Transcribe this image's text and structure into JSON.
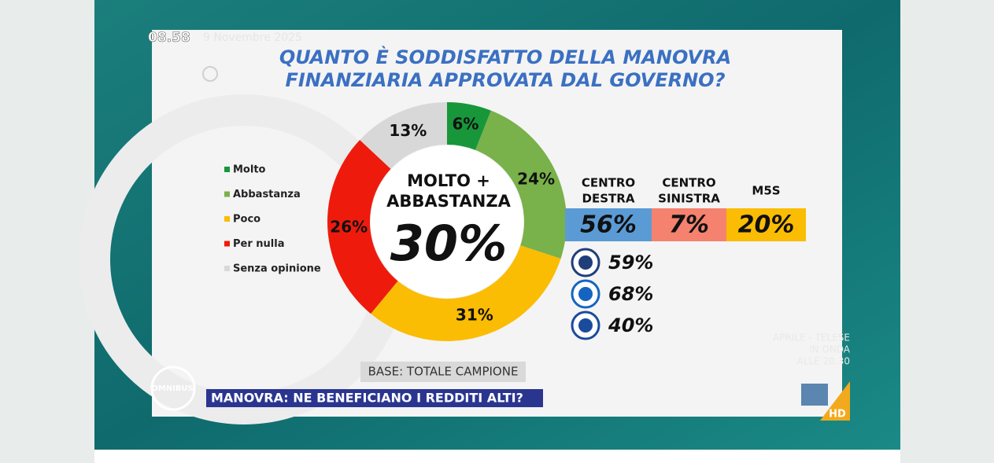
{
  "chart_data": {
    "type": "pie",
    "donut": true,
    "title": [
      "QUANTO È SODDISFATTO DELLA MANOVRA",
      "FINANZIARIA APPROVATA DAL GOVERNO?"
    ],
    "categories": [
      "Molto",
      "Abbastanza",
      "Poco",
      "Per nulla",
      "Senza opinione"
    ],
    "values": [
      6,
      24,
      31,
      26,
      13
    ],
    "value_labels": [
      "6%",
      "24%",
      "31%",
      "26%",
      "13%"
    ],
    "colors": [
      "#17973a",
      "#79b14a",
      "#fbbc04",
      "#ee1b0d",
      "#d8d8d8"
    ],
    "center_label": [
      "MOLTO +",
      "ABBASTANZA"
    ],
    "center_value": 30,
    "center_value_label": "30%",
    "note": "BASE: TOTALE CAMPIONE"
  },
  "breakdown": {
    "groups": [
      {
        "name": [
          "CENTRO",
          "DESTRA"
        ],
        "value": 56,
        "label": "56%",
        "color": "#5b9bd5"
      },
      {
        "name": [
          "CENTRO",
          "SINISTRA"
        ],
        "value": 7,
        "label": "7%",
        "color": "#f4826f"
      },
      {
        "name": [
          "M5S"
        ],
        "value": 20,
        "label": "20%",
        "color": "#fbbc04"
      }
    ],
    "parties": [
      {
        "value": 59,
        "label": "59%"
      },
      {
        "value": 68,
        "label": "68%"
      },
      {
        "value": 40,
        "label": "40%"
      }
    ]
  },
  "broadcast": {
    "time": "08.58",
    "date": "9 Novembre 2025",
    "logo": "OMNIBUS",
    "ticker": "MANOVRA: NE BENEFICIANO I REDDITI ALTI?",
    "promo": [
      "APRILE - TELESE",
      "IN ONDA",
      "ALLE 20.30"
    ],
    "hd": "HD"
  }
}
